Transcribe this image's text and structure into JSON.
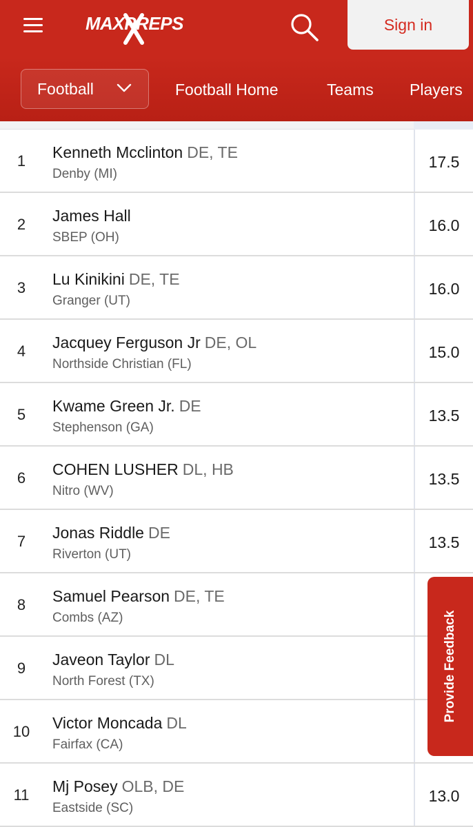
{
  "header": {
    "logo_text": "MAXPREPS",
    "signin_label": "Sign in",
    "icons": [
      "hamburger-menu-icon",
      "search-icon"
    ],
    "brand_color": "#c8281c"
  },
  "nav": {
    "sport_selected": "Football",
    "links": [
      "Football Home",
      "Teams",
      "Players"
    ]
  },
  "leaders": [
    {
      "rank": "1",
      "name": "Kenneth Mcclinton",
      "positions": "DE, TE",
      "school": "Denby (MI)",
      "stat": "17.5"
    },
    {
      "rank": "2",
      "name": "James Hall",
      "positions": "",
      "school": "SBEP (OH)",
      "stat": "16.0"
    },
    {
      "rank": "3",
      "name": "Lu Kinikini",
      "positions": "DE, TE",
      "school": "Granger (UT)",
      "stat": "16.0"
    },
    {
      "rank": "4",
      "name": "Jacquey Ferguson Jr",
      "positions": "DE, OL",
      "school": "Northside Christian (FL)",
      "stat": "15.0"
    },
    {
      "rank": "5",
      "name": "Kwame Green Jr.",
      "positions": "DE",
      "school": "Stephenson (GA)",
      "stat": "13.5"
    },
    {
      "rank": "6",
      "name": "COHEN LUSHER",
      "positions": "DL, HB",
      "school": "Nitro (WV)",
      "stat": "13.5"
    },
    {
      "rank": "7",
      "name": "Jonas Riddle",
      "positions": "DE",
      "school": "Riverton (UT)",
      "stat": "13.5"
    },
    {
      "rank": "8",
      "name": "Samuel Pearson",
      "positions": "DE, TE",
      "school": "Combs (AZ)",
      "stat": ""
    },
    {
      "rank": "9",
      "name": "Javeon Taylor",
      "positions": "DL",
      "school": "North Forest (TX)",
      "stat": ""
    },
    {
      "rank": "10",
      "name": "Victor Moncada",
      "positions": "DL",
      "school": "Fairfax (CA)",
      "stat": ""
    },
    {
      "rank": "11",
      "name": "Mj Posey",
      "positions": "OLB, DE",
      "school": "Eastside (SC)",
      "stat": "13.0"
    }
  ],
  "feedback": {
    "label": "Provide Feedback"
  }
}
